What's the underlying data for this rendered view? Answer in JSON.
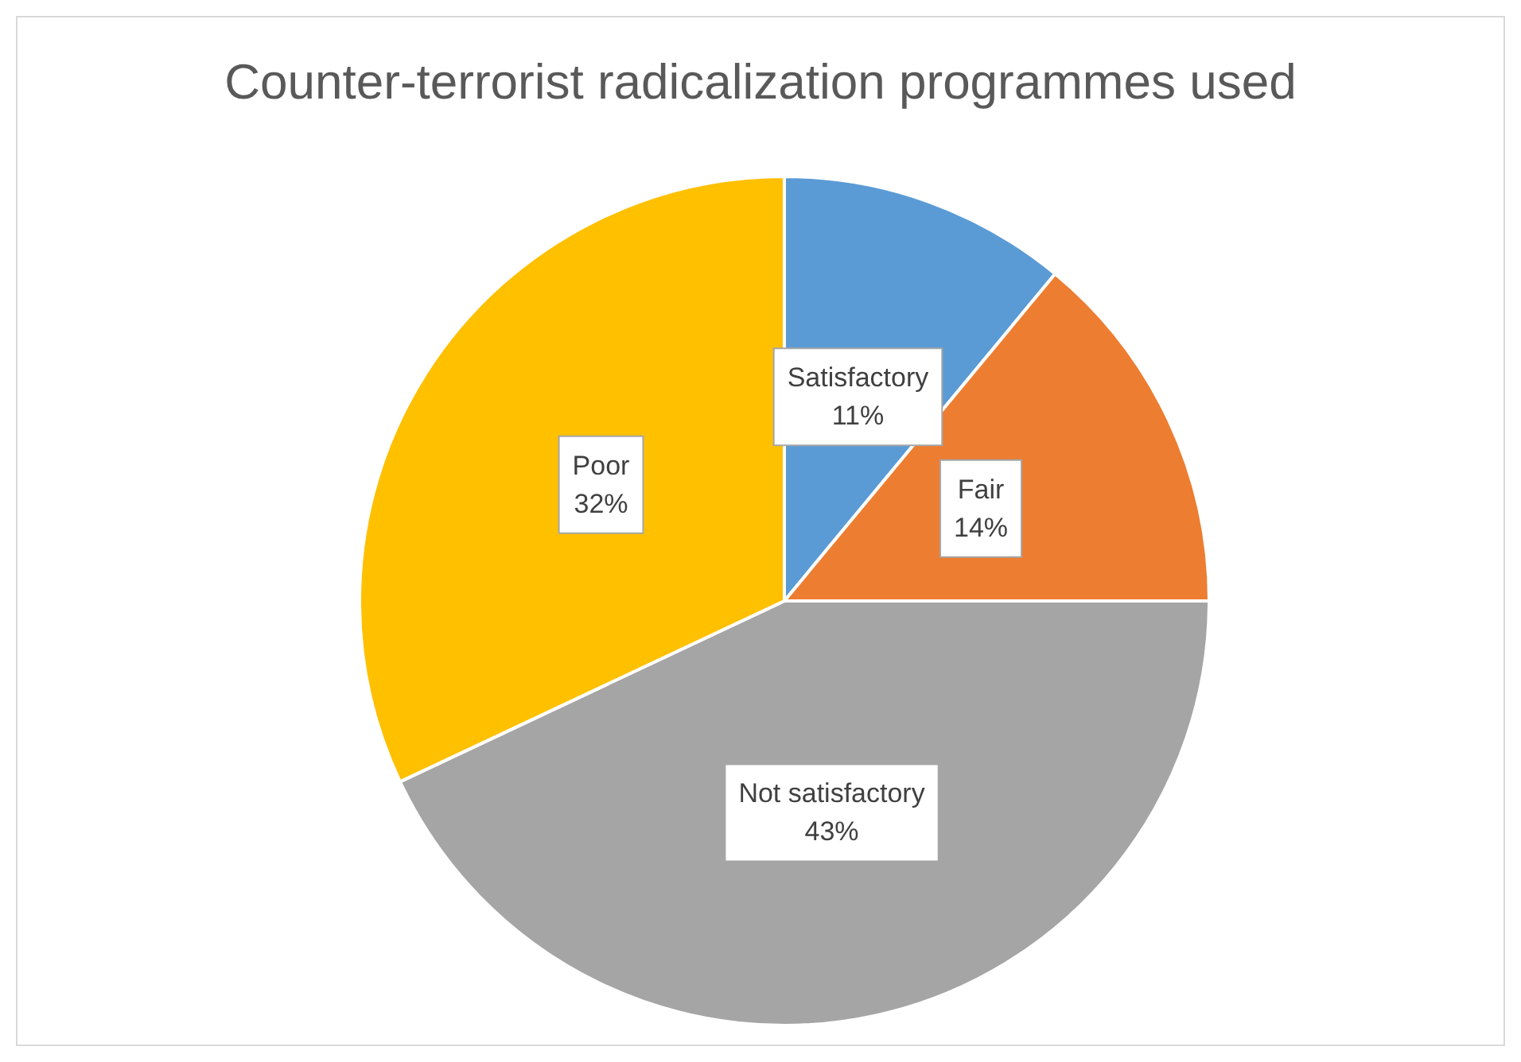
{
  "chart_data": {
    "type": "pie",
    "title": "Counter-terrorist radicalization programmes used",
    "categories": [
      "Satisfactory",
      "Fair",
      "Not satisfactory",
      "Poor"
    ],
    "values": [
      11,
      14,
      43,
      32
    ],
    "value_labels": [
      "11%",
      "14%",
      "43%",
      "32%"
    ],
    "colors": [
      "#5b9bd5",
      "#ed7d31",
      "#a5a5a5",
      "#ffc000"
    ],
    "legend": false
  }
}
